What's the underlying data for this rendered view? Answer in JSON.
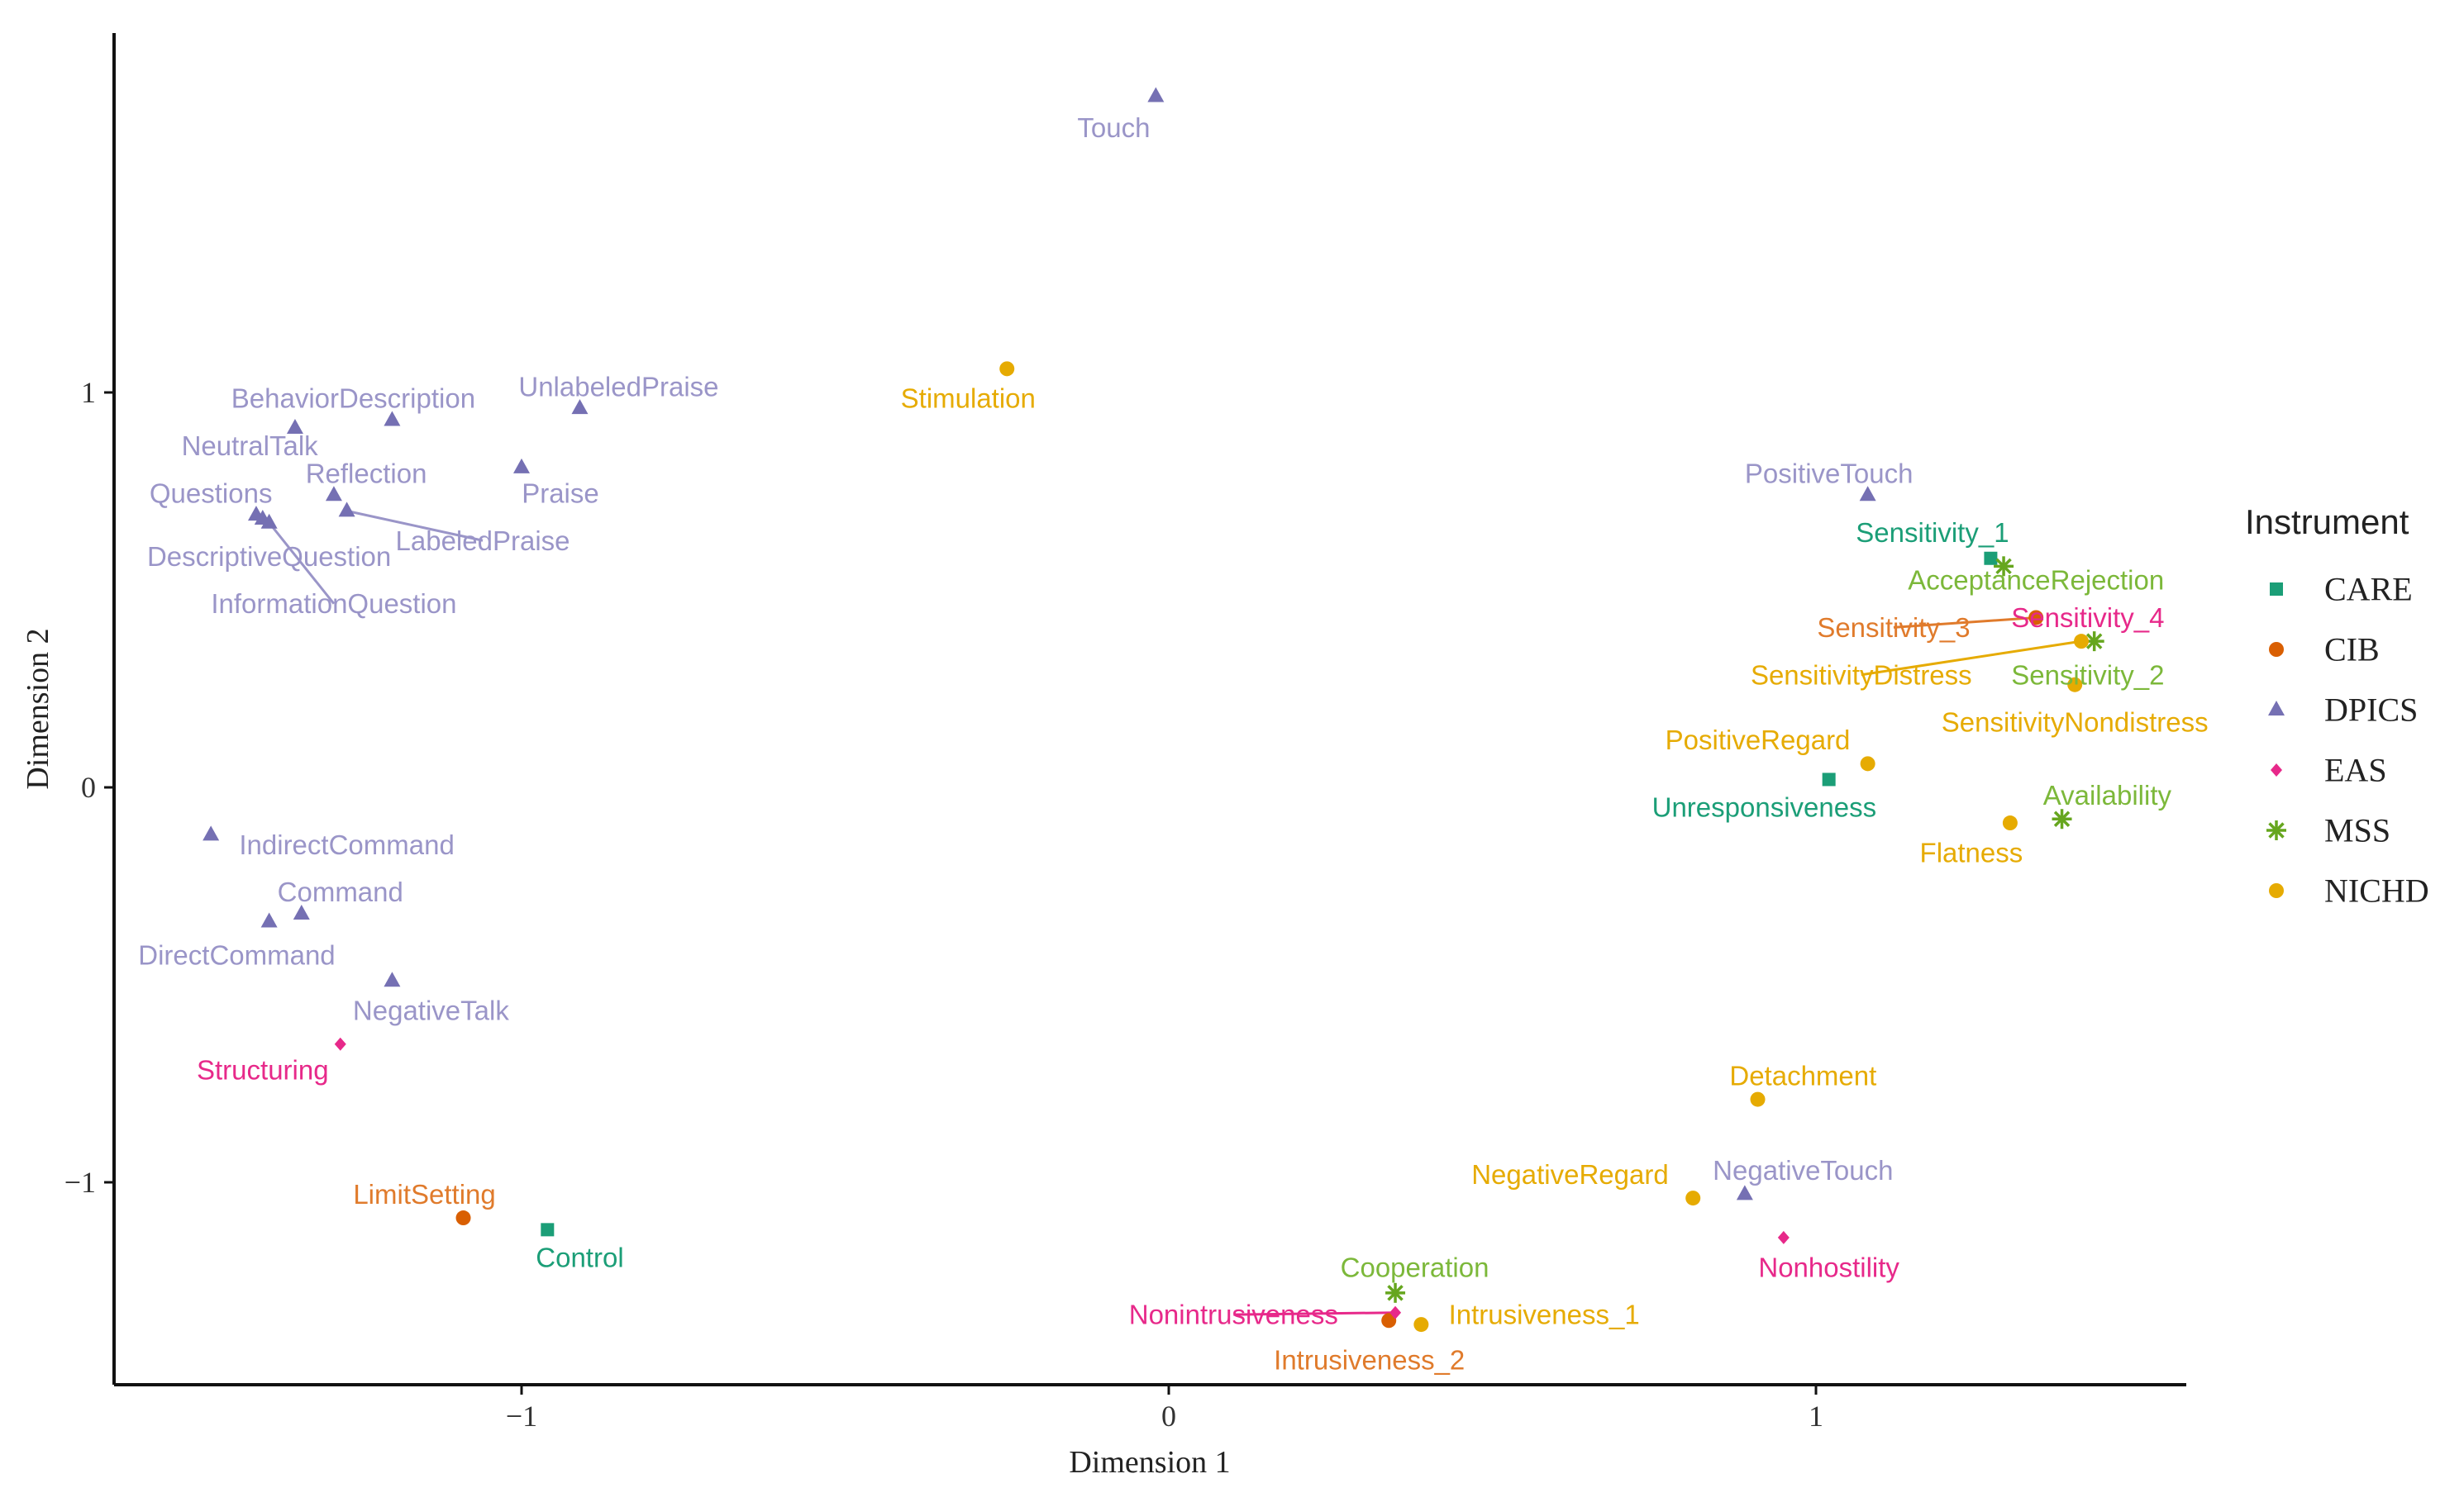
{
  "chart_data": {
    "type": "scatter",
    "title": "",
    "xlabel": "Dimension 1",
    "ylabel": "Dimension 2",
    "xlim": [
      -1.6,
      1.57
    ],
    "ylim": [
      -1.52,
      1.9
    ],
    "x_ticks": [
      -1,
      0,
      1
    ],
    "x_tick_labels": [
      "−1",
      "0",
      "1"
    ],
    "y_ticks": [
      -1,
      0,
      1
    ],
    "y_tick_labels": [
      "−1",
      "0",
      "1"
    ],
    "grid": false,
    "legend": {
      "title": "Instrument",
      "placement": "right",
      "entries": [
        "CARE",
        "CIB",
        "DPICS",
        "EAS",
        "MSS",
        "NICHD"
      ]
    },
    "colors": {
      "CARE": "#1b9e77",
      "CIB": "#d95f02",
      "DPICS": "#7570b3",
      "EAS": "#e7298a",
      "MSS": "#66a61e",
      "NICHD": "#e6ab02"
    },
    "label_colors": {
      "CARE": "#1b9e77",
      "CIB": "#e07b2c",
      "DPICS": "#9a95c8",
      "EAS": "#e7298a",
      "MSS": "#7cb83a",
      "NICHD": "#e6ab02"
    },
    "series": [
      {
        "name": "CARE",
        "points": [
          {
            "label": "Sensitivity_1",
            "x": 1.27,
            "y": 0.58,
            "lx": 1.18,
            "ly": 0.645
          },
          {
            "label": "Unresponsiveness",
            "x": 1.02,
            "y": 0.02,
            "lx": 0.92,
            "ly": -0.05
          },
          {
            "label": "Control",
            "x": -0.96,
            "y": -1.12,
            "lx": -0.91,
            "ly": -1.19
          }
        ]
      },
      {
        "name": "CIB",
        "points": [
          {
            "label": "Sensitivity_3",
            "x": 1.34,
            "y": 0.43,
            "lx": 1.12,
            "ly": 0.405,
            "seg": true
          },
          {
            "label": "LimitSetting",
            "x": -1.09,
            "y": -1.09,
            "lx": -1.15,
            "ly": -1.03
          },
          {
            "label": "Intrusiveness_2",
            "x": 0.34,
            "y": -1.35,
            "lx": 0.31,
            "ly": -1.45
          }
        ]
      },
      {
        "name": "DPICS",
        "points": [
          {
            "label": "Touch",
            "x": -0.02,
            "y": 1.75,
            "lx": -0.085,
            "ly": 1.67
          },
          {
            "label": "BehaviorDescription",
            "x": -1.2,
            "y": 0.93,
            "lx": -1.26,
            "ly": 0.985
          },
          {
            "label": "UnlabeledPraise",
            "x": -0.91,
            "y": 0.96,
            "lx": -0.85,
            "ly": 1.015
          },
          {
            "label": "NeutralTalk",
            "x": -1.35,
            "y": 0.91,
            "lx": -1.42,
            "ly": 0.865
          },
          {
            "label": "Reflection",
            "x": -1.29,
            "y": 0.74,
            "lx": -1.24,
            "ly": 0.795
          },
          {
            "label": "Praise",
            "x": -1.0,
            "y": 0.81,
            "lx": -0.94,
            "ly": 0.745
          },
          {
            "label": "Questions",
            "x": -1.41,
            "y": 0.69,
            "lx": -1.48,
            "ly": 0.745
          },
          {
            "label": "LabeledPraise",
            "x": -1.27,
            "y": 0.7,
            "lx": -1.06,
            "ly": 0.625,
            "seg": true
          },
          {
            "label": "DescriptiveQuestion",
            "x": -1.4,
            "y": 0.68,
            "lx": -1.39,
            "ly": 0.585
          },
          {
            "label": "InformationQuestion",
            "x": -1.39,
            "y": 0.67,
            "lx": -1.29,
            "ly": 0.465,
            "seg": true
          },
          {
            "label": "PositiveTouch",
            "x": 1.08,
            "y": 0.74,
            "lx": 1.02,
            "ly": 0.795
          },
          {
            "label": "IndirectCommand",
            "x": -1.48,
            "y": -0.12,
            "lx": -1.27,
            "ly": -0.145
          },
          {
            "label": "Command",
            "x": -1.34,
            "y": -0.32,
            "lx": -1.28,
            "ly": -0.265
          },
          {
            "label": "DirectCommand",
            "x": -1.39,
            "y": -0.34,
            "lx": -1.44,
            "ly": -0.425
          },
          {
            "label": "NegativeTalk",
            "x": -1.2,
            "y": -0.49,
            "lx": -1.14,
            "ly": -0.565
          },
          {
            "label": "NegativeTouch",
            "x": 0.89,
            "y": -1.03,
            "lx": 0.98,
            "ly": -0.97
          }
        ]
      },
      {
        "name": "EAS",
        "points": [
          {
            "label": "Sensitivity_4",
            "x": 1.41,
            "y": 0.37,
            "lx": 1.42,
            "ly": 0.43
          },
          {
            "label": "Structuring",
            "x": -1.28,
            "y": -0.65,
            "lx": -1.4,
            "ly": -0.715
          },
          {
            "label": "Nonhostility",
            "x": 0.95,
            "y": -1.14,
            "lx": 1.02,
            "ly": -1.215
          },
          {
            "label": "Nonintrusiveness",
            "x": 0.35,
            "y": -1.33,
            "lx": 0.1,
            "ly": -1.335,
            "seg": true
          }
        ]
      },
      {
        "name": "MSS",
        "points": [
          {
            "label": "AcceptanceRejection",
            "x": 1.29,
            "y": 0.56,
            "lx": 1.34,
            "ly": 0.525
          },
          {
            "label": "Sensitivity_2",
            "x": 1.43,
            "y": 0.37,
            "lx": 1.42,
            "ly": 0.285
          },
          {
            "label": "Availability",
            "x": 1.38,
            "y": -0.08,
            "lx": 1.45,
            "ly": -0.02
          },
          {
            "label": "Cooperation",
            "x": 0.35,
            "y": -1.28,
            "lx": 0.38,
            "ly": -1.215
          }
        ]
      },
      {
        "name": "NICHD",
        "points": [
          {
            "label": "Stimulation",
            "x": -0.25,
            "y": 1.06,
            "lx": -0.31,
            "ly": 0.985
          },
          {
            "label": "SensitivityDistress",
            "x": 1.41,
            "y": 0.37,
            "lx": 1.07,
            "ly": 0.285,
            "seg": true
          },
          {
            "label": "SensitivityNondistress",
            "x": 1.4,
            "y": 0.26,
            "lx": 1.4,
            "ly": 0.165
          },
          {
            "label": "PositiveRegard",
            "x": 1.08,
            "y": 0.06,
            "lx": 0.91,
            "ly": 0.12
          },
          {
            "label": "Flatness",
            "x": 1.3,
            "y": -0.09,
            "lx": 1.24,
            "ly": -0.165
          },
          {
            "label": "Detachment",
            "x": 0.91,
            "y": -0.79,
            "lx": 0.98,
            "ly": -0.73
          },
          {
            "label": "NegativeRegard",
            "x": 0.81,
            "y": -1.04,
            "lx": 0.62,
            "ly": -0.98
          },
          {
            "label": "Intrusiveness_1",
            "x": 0.39,
            "y": -1.36,
            "lx": 0.58,
            "ly": -1.335
          }
        ]
      }
    ]
  }
}
